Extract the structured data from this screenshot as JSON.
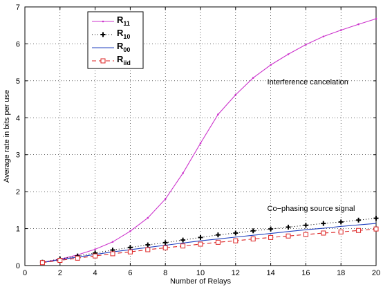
{
  "chart_data": {
    "type": "line",
    "xlabel": "Number of Relays",
    "ylabel": "Average rate in bits per use",
    "xlim": [
      0,
      20
    ],
    "ylim": [
      0,
      7
    ],
    "xticks": [
      0,
      2,
      4,
      6,
      8,
      10,
      12,
      14,
      16,
      18,
      20
    ],
    "yticks": [
      0,
      1,
      2,
      3,
      4,
      5,
      6,
      7
    ],
    "grid": true,
    "legend_position": "top-left",
    "x": [
      1,
      2,
      3,
      4,
      5,
      6,
      7,
      8,
      9,
      10,
      11,
      12,
      13,
      14,
      15,
      16,
      17,
      18,
      19,
      20
    ],
    "series": [
      {
        "name": "R",
        "subscript": "11",
        "color": "#cc33cc",
        "style": "solid-dot",
        "values": [
          0.09,
          0.17,
          0.29,
          0.44,
          0.64,
          0.93,
          1.29,
          1.8,
          2.5,
          3.31,
          4.09,
          4.62,
          5.08,
          5.43,
          5.72,
          5.98,
          6.2,
          6.37,
          6.53,
          6.68
        ]
      },
      {
        "name": "R",
        "subscript": "10",
        "color": "#000000",
        "style": "dotted-plus",
        "values": [
          0.09,
          0.18,
          0.26,
          0.34,
          0.42,
          0.49,
          0.56,
          0.62,
          0.69,
          0.76,
          0.83,
          0.88,
          0.94,
          0.99,
          1.04,
          1.09,
          1.14,
          1.18,
          1.23,
          1.28
        ]
      },
      {
        "name": "R",
        "subscript": "00",
        "color": "#1f3fbf",
        "style": "solid",
        "values": [
          0.08,
          0.16,
          0.23,
          0.3,
          0.37,
          0.43,
          0.49,
          0.55,
          0.61,
          0.67,
          0.72,
          0.77,
          0.82,
          0.87,
          0.92,
          0.97,
          1.01,
          1.06,
          1.1,
          1.14
        ]
      },
      {
        "name": "R",
        "subscript": "iid",
        "color": "#dd2222",
        "style": "dashed-square",
        "values": [
          0.08,
          0.14,
          0.2,
          0.26,
          0.32,
          0.37,
          0.43,
          0.48,
          0.53,
          0.58,
          0.63,
          0.67,
          0.72,
          0.76,
          0.8,
          0.84,
          0.88,
          0.91,
          0.95,
          0.99
        ]
      }
    ],
    "annotations": [
      {
        "text": "Interference cancelation",
        "x": 13.8,
        "y": 4.9
      },
      {
        "text": "Co−phasing source signal",
        "x": 13.8,
        "y": 1.48
      }
    ]
  }
}
